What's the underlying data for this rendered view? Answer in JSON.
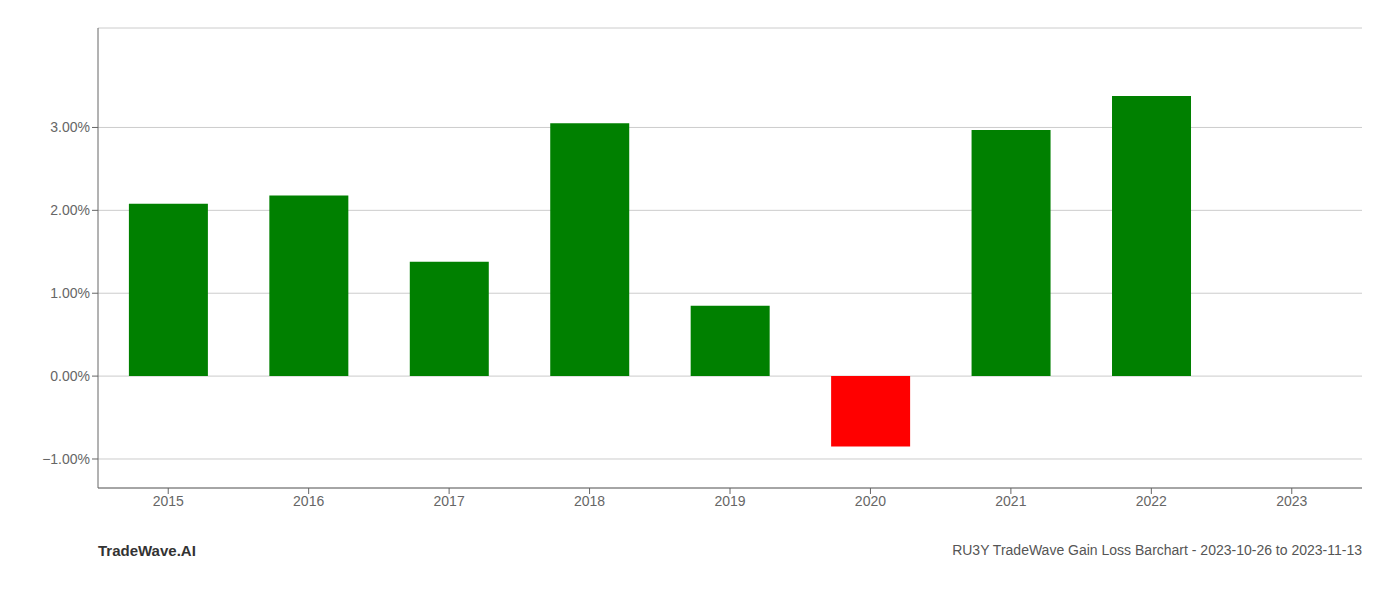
{
  "chart_data": {
    "type": "bar",
    "title": "RU3Y TradeWave Gain Loss Barchart - 2023-10-26 to 2023-11-13",
    "annotations": [
      "TradeWave.AI"
    ],
    "categories": [
      "2015",
      "2016",
      "2017",
      "2018",
      "2019",
      "2020",
      "2021",
      "2022",
      "2023"
    ],
    "values": [
      0.0208,
      0.0218,
      0.0138,
      0.0305,
      0.0085,
      -0.0085,
      0.0297,
      0.0338,
      null
    ],
    "colors": [
      "#008000",
      "#008000",
      "#008000",
      "#008000",
      "#008000",
      "#ff0000",
      "#008000",
      "#008000",
      null
    ],
    "ylim": [
      -0.0135,
      0.042
    ],
    "yticks": [
      {
        "value": -0.01,
        "label": "−1.00%"
      },
      {
        "value": 0.0,
        "label": "0.00%"
      },
      {
        "value": 0.01,
        "label": "1.00%"
      },
      {
        "value": 0.02,
        "label": "2.00%"
      },
      {
        "value": 0.03,
        "label": "3.00%"
      }
    ],
    "grid": true
  }
}
